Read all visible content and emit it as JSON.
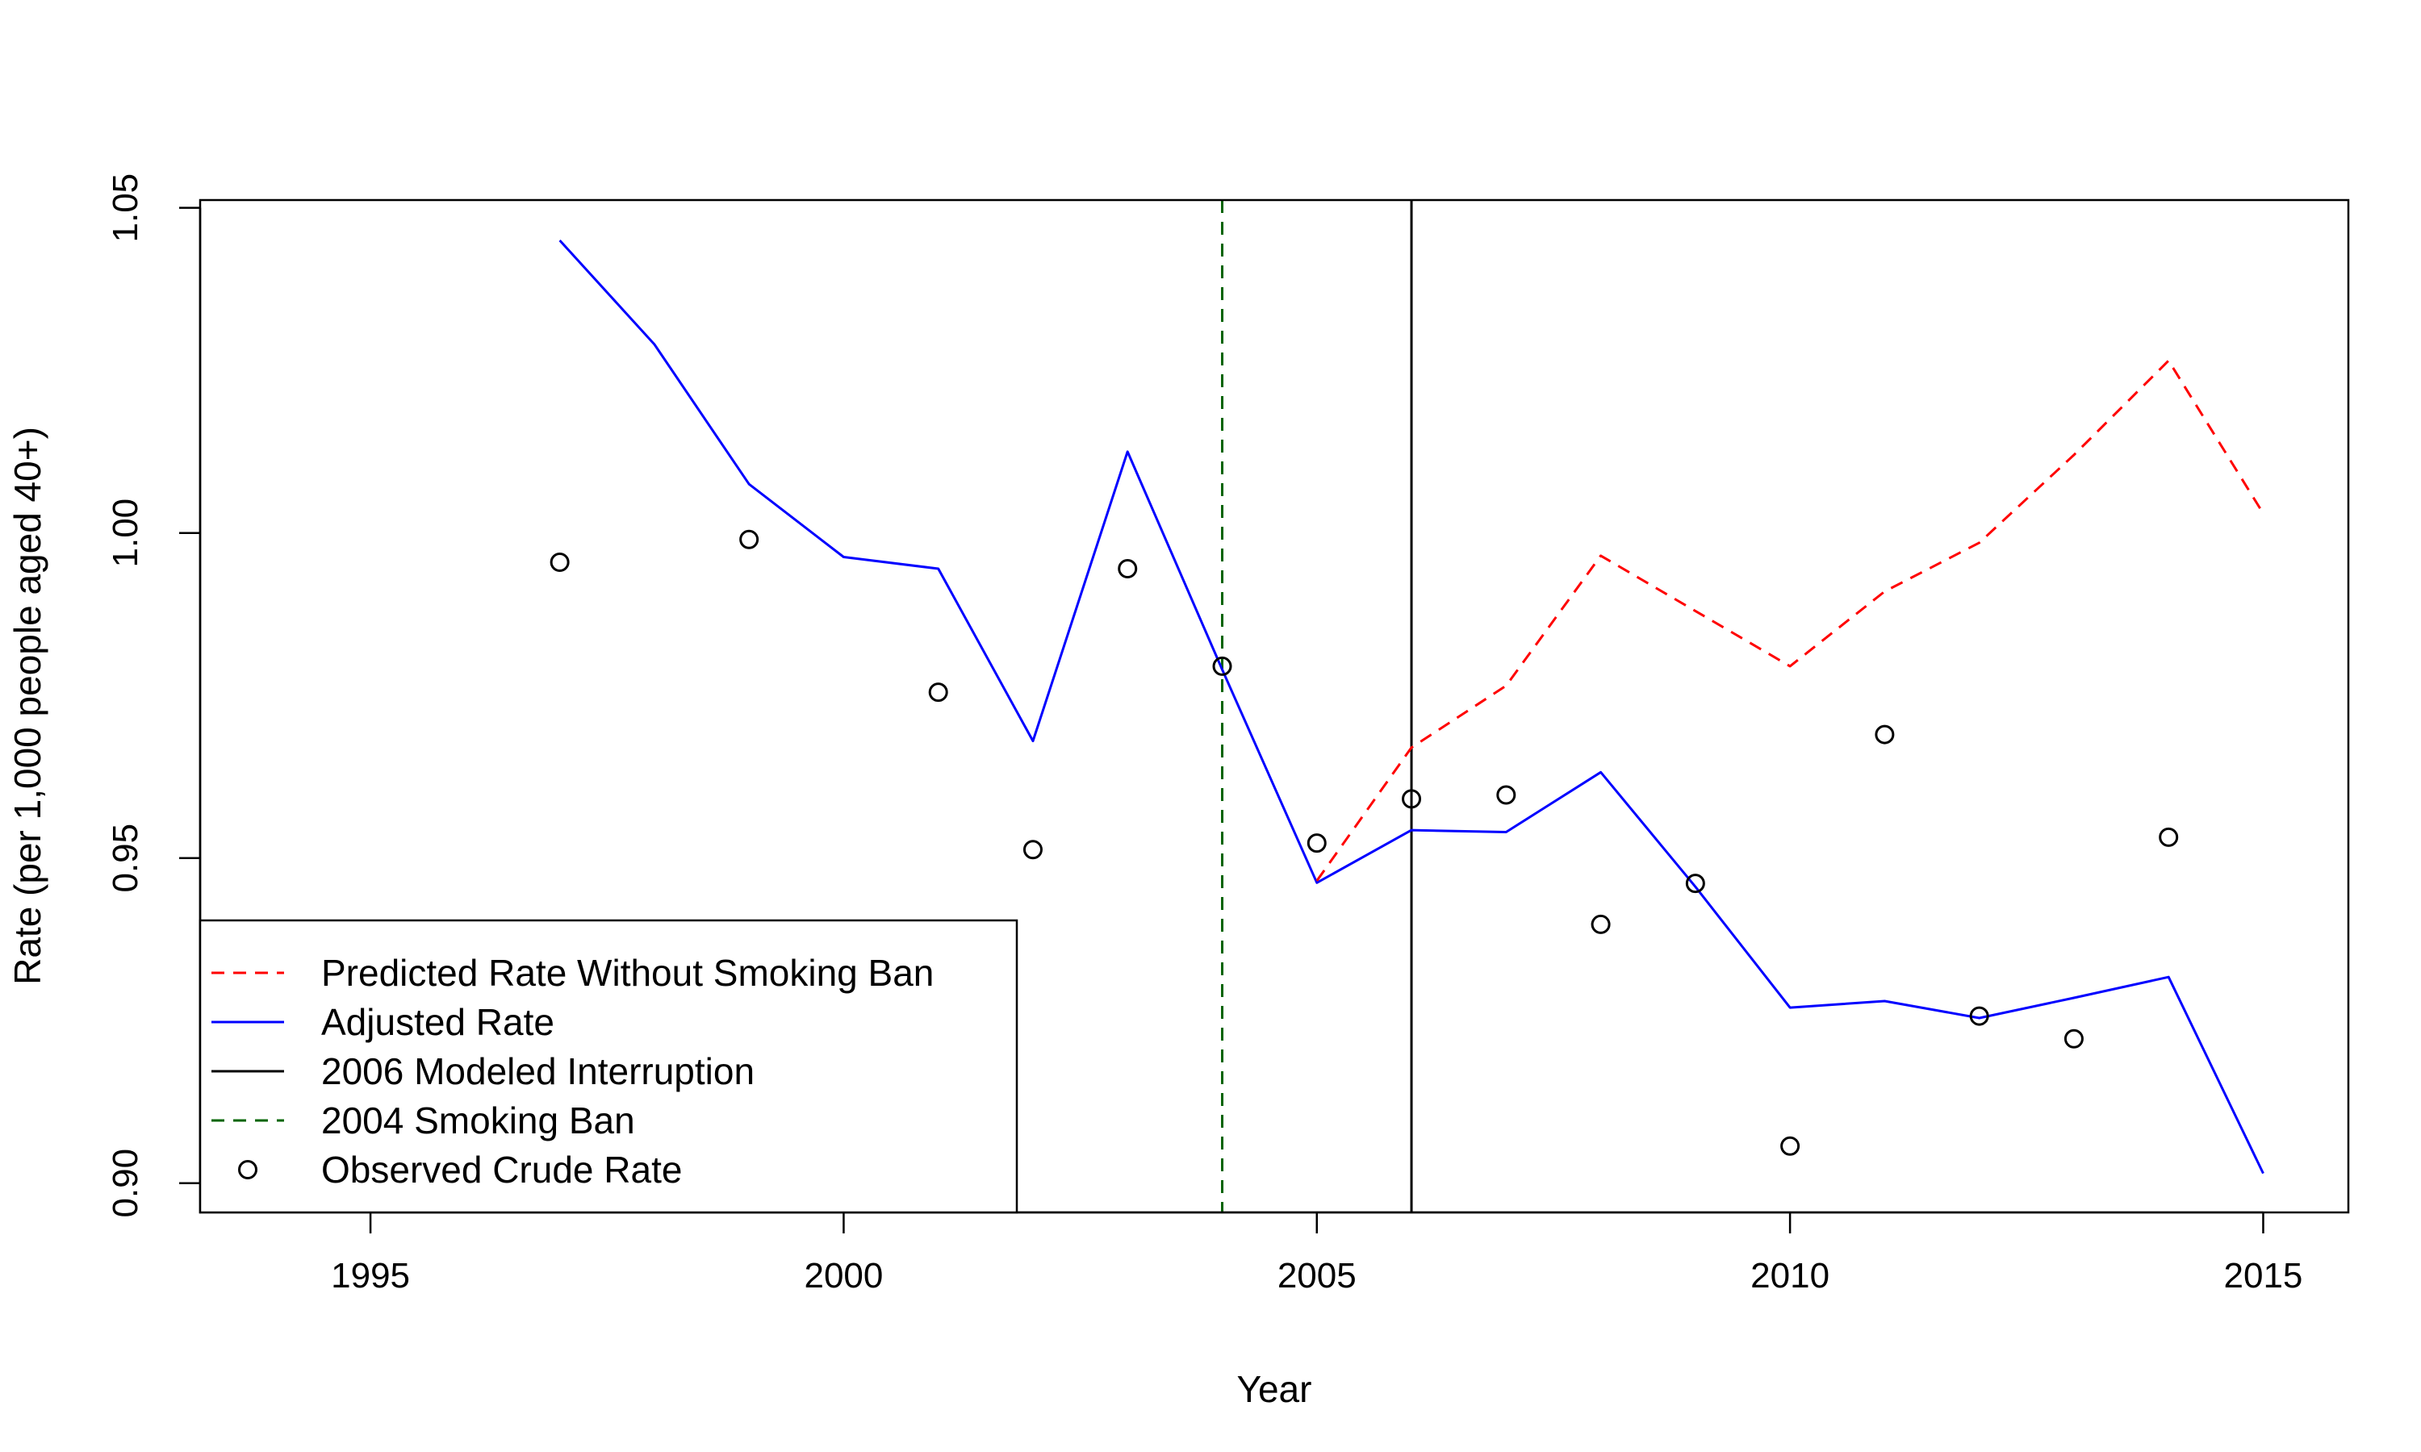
{
  "chart_data": {
    "type": "line",
    "title": "",
    "xlabel": "Year",
    "ylabel": "Rate (per 1,000 people aged 40+)",
    "xlim": [
      1993.2,
      2015.9
    ],
    "ylim": [
      0.8955,
      1.0512
    ],
    "xticks": [
      1995,
      2000,
      2005,
      2010,
      2015
    ],
    "xtick_labels": [
      "1995",
      "2000",
      "2005",
      "2010",
      "2015"
    ],
    "yticks": [
      0.9,
      0.95,
      1.0,
      1.05
    ],
    "ytick_labels": [
      "0.90",
      "0.95",
      "1.00",
      "1.05"
    ],
    "grid": false,
    "legend_position": "bottom-left",
    "series": [
      {
        "name": "Adjusted Rate",
        "kind": "line",
        "color": "#0000FF",
        "dash": "solid",
        "x": [
          1997,
          1998,
          1999,
          2000,
          2001,
          2002,
          2003,
          2004,
          2005,
          2006,
          2007,
          2008,
          2009,
          2010,
          2011,
          2012,
          2013,
          2014,
          2015
        ],
        "y": [
          1.045,
          1.029,
          1.0075,
          0.9963,
          0.9945,
          0.968,
          1.0125,
          0.979,
          0.9462,
          0.9543,
          0.954,
          0.9632,
          0.9456,
          0.927,
          0.928,
          0.9254,
          0.9285,
          0.9317,
          0.9015
        ]
      },
      {
        "name": "Predicted Rate Without Smoking Ban",
        "kind": "line",
        "color": "#FF0000",
        "dash": "dashed",
        "x": [
          2005,
          2006,
          2007,
          2008,
          2009,
          2010,
          2011,
          2012,
          2013,
          2014,
          2015
        ],
        "y": [
          0.9465,
          0.967,
          0.9765,
          0.9965,
          0.988,
          0.9795,
          0.991,
          0.9985,
          1.012,
          1.0265,
          1.003
        ]
      },
      {
        "name": "Observed Crude Rate",
        "kind": "points",
        "color": "#000000",
        "x": [
          1997,
          1999,
          2001,
          2002,
          2003,
          2004,
          2005,
          2006,
          2007,
          2008,
          2009,
          2010,
          2011,
          2012,
          2013,
          2014
        ],
        "y": [
          0.9955,
          0.999,
          0.9755,
          0.9513,
          0.9945,
          0.9795,
          0.9523,
          0.9591,
          0.9597,
          0.9398,
          0.9461,
          0.9057,
          0.969,
          0.9257,
          0.9222,
          0.9532
        ]
      }
    ],
    "vlines": [
      {
        "name": "2006 Modeled Interruption",
        "x": 2006,
        "color": "#000000",
        "dash": "solid"
      },
      {
        "name": "2004 Smoking Ban",
        "x": 2004,
        "color": "#006400",
        "dash": "dashed"
      }
    ],
    "legend": [
      {
        "label": "Predicted Rate Without Smoking Ban",
        "symbol": "dashed-line",
        "color": "#FF0000"
      },
      {
        "label": "Adjusted Rate",
        "symbol": "line",
        "color": "#0000FF"
      },
      {
        "label": "2006 Modeled Interruption",
        "symbol": "line",
        "color": "#000000"
      },
      {
        "label": "2004 Smoking Ban",
        "symbol": "dashed-line",
        "color": "#006400"
      },
      {
        "label": "Observed Crude Rate",
        "symbol": "circle",
        "color": "#000000"
      }
    ]
  }
}
